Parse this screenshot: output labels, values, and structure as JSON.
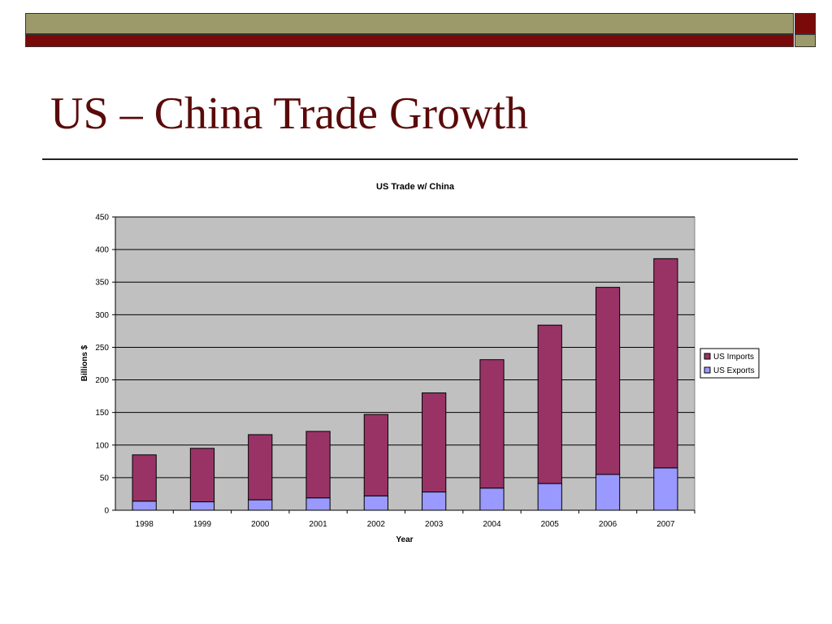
{
  "slide": {
    "title": "US – China Trade Growth"
  },
  "colors": {
    "band_olive": "#9c9a6a",
    "band_maroon": "#7a0a0a",
    "title": "#5a0a0a",
    "plot_bg": "#c0c0c0",
    "imports": "#993366",
    "exports": "#9999ff"
  },
  "chart_data": {
    "type": "bar",
    "stacked": true,
    "title": "US Trade w/ China",
    "xlabel": "Year",
    "ylabel": "Billions $",
    "categories": [
      "1998",
      "1999",
      "2000",
      "2001",
      "2002",
      "2003",
      "2004",
      "2005",
      "2006",
      "2007"
    ],
    "series": [
      {
        "name": "US Exports",
        "color": "#9999ff",
        "values": [
          14,
          13,
          16,
          19,
          22,
          28,
          34,
          41,
          55,
          65
        ]
      },
      {
        "name": "US Imports",
        "color": "#993366",
        "values": [
          71,
          82,
          100,
          102,
          125,
          152,
          197,
          243,
          287,
          321
        ]
      }
    ],
    "ylim": [
      0,
      450
    ],
    "yticks": [
      0,
      50,
      100,
      150,
      200,
      250,
      300,
      350,
      400,
      450
    ],
    "grid": true,
    "legend": "right",
    "legend_order": [
      "US Imports",
      "US Exports"
    ]
  }
}
